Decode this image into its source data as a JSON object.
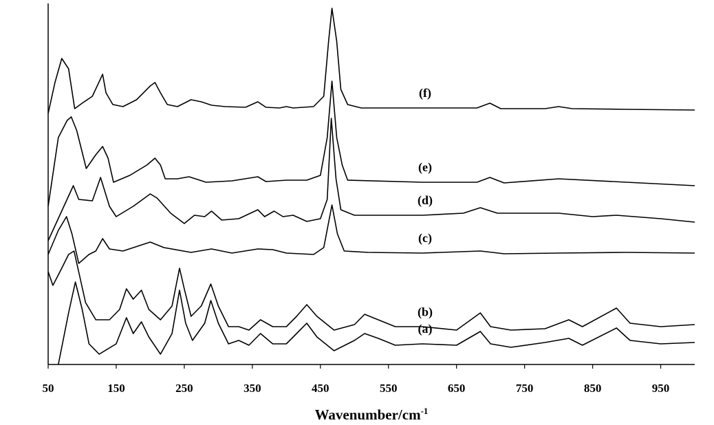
{
  "chart_data": {
    "type": "line",
    "x_label": "Wavenumber/cm",
    "x_label_sup": "-1",
    "xlim": [
      50,
      1000
    ],
    "xticks": [
      50,
      150,
      250,
      350,
      450,
      550,
      650,
      750,
      850,
      950
    ],
    "ylim": [
      0,
      525
    ],
    "series": [
      {
        "name": "(a)",
        "color": "#000000",
        "x": [
          65,
          80,
          90,
          100,
          110,
          125,
          150,
          165,
          175,
          187,
          198,
          215,
          232,
          243,
          252,
          262,
          280,
          289,
          300,
          315,
          330,
          345,
          362,
          380,
          400,
          415,
          430,
          445,
          470,
          500,
          515,
          535,
          560,
          600,
          650,
          685,
          700,
          730,
          780,
          815,
          835,
          885,
          905,
          950,
          1000
        ],
        "values": [
          0,
          75,
          120,
          80,
          30,
          15,
          30,
          68,
          45,
          62,
          40,
          15,
          45,
          108,
          60,
          35,
          60,
          93,
          60,
          30,
          35,
          28,
          45,
          30,
          30,
          45,
          60,
          40,
          20,
          35,
          45,
          38,
          28,
          30,
          28,
          48,
          30,
          25,
          32,
          38,
          28,
          53,
          35,
          30,
          32
        ]
      },
      {
        "name": "(b)",
        "color": "#000000",
        "x": [
          50,
          57,
          70,
          80,
          88,
          96,
          105,
          120,
          140,
          155,
          165,
          175,
          187,
          198,
          215,
          232,
          243,
          250,
          260,
          275,
          289,
          300,
          315,
          330,
          345,
          362,
          380,
          400,
          415,
          430,
          445,
          470,
          500,
          515,
          535,
          560,
          600,
          650,
          685,
          700,
          730,
          780,
          815,
          835,
          885,
          905,
          950,
          1000
        ],
        "values": [
          135,
          115,
          140,
          160,
          165,
          130,
          90,
          65,
          65,
          80,
          110,
          95,
          108,
          80,
          65,
          85,
          140,
          110,
          70,
          85,
          117,
          85,
          55,
          55,
          50,
          65,
          55,
          55,
          70,
          87,
          70,
          50,
          58,
          73,
          65,
          55,
          55,
          50,
          75,
          55,
          50,
          52,
          65,
          55,
          82,
          60,
          55,
          58
        ]
      },
      {
        "name": "(c)",
        "color": "#000000",
        "x": [
          50,
          65,
          77,
          85,
          95,
          110,
          120,
          130,
          140,
          160,
          200,
          220,
          260,
          290,
          320,
          358,
          380,
          400,
          440,
          455,
          467,
          475,
          485,
          520,
          600,
          685,
          720,
          800,
          900,
          1000
        ],
        "values": [
          160,
          195,
          215,
          190,
          147,
          160,
          165,
          183,
          168,
          165,
          178,
          170,
          163,
          168,
          162,
          168,
          167,
          162,
          160,
          170,
          232,
          190,
          165,
          163,
          162,
          165,
          161,
          162,
          163,
          162
        ]
      },
      {
        "name": "(d)",
        "color": "#000000",
        "x": [
          50,
          87,
          95,
          115,
          127,
          140,
          150,
          175,
          200,
          210,
          230,
          250,
          265,
          280,
          290,
          305,
          330,
          358,
          368,
          382,
          395,
          410,
          430,
          450,
          460,
          466,
          473,
          480,
          500,
          600,
          660,
          685,
          710,
          800,
          850,
          885,
          950,
          1000
        ],
        "values": [
          180,
          260,
          240,
          238,
          272,
          230,
          215,
          230,
          248,
          242,
          220,
          205,
          217,
          215,
          223,
          210,
          212,
          225,
          215,
          223,
          215,
          217,
          208,
          212,
          240,
          358,
          270,
          225,
          217,
          217,
          220,
          228,
          220,
          220,
          215,
          217,
          212,
          207
        ]
      },
      {
        "name": "(e)",
        "color": "#000000",
        "x": [
          50,
          65,
          78,
          84,
          92,
          106,
          120,
          130,
          138,
          146,
          170,
          195,
          207,
          215,
          222,
          240,
          257,
          282,
          320,
          358,
          370,
          400,
          430,
          450,
          460,
          467,
          474,
          482,
          490,
          600,
          680,
          699,
          720,
          800,
          900,
          1000
        ],
        "values": [
          230,
          330,
          355,
          360,
          340,
          285,
          305,
          317,
          300,
          265,
          275,
          290,
          300,
          290,
          270,
          270,
          273,
          265,
          267,
          273,
          266,
          268,
          268,
          275,
          330,
          412,
          330,
          290,
          268,
          265,
          265,
          272,
          264,
          270,
          265,
          260
        ]
      },
      {
        "name": "(f)",
        "color": "#000000",
        "x": [
          50,
          60,
          70,
          80,
          89,
          100,
          115,
          130,
          135,
          145,
          160,
          180,
          200,
          207,
          215,
          225,
          240,
          260,
          275,
          290,
          310,
          340,
          358,
          370,
          390,
          400,
          410,
          440,
          455,
          462,
          467,
          474,
          480,
          490,
          510,
          600,
          680,
          699,
          715,
          780,
          800,
          820,
          900,
          1000
        ],
        "values": [
          365,
          410,
          445,
          430,
          372,
          380,
          390,
          422,
          395,
          378,
          375,
          385,
          405,
          410,
          395,
          378,
          375,
          385,
          382,
          377,
          375,
          374,
          382,
          374,
          373,
          375,
          373,
          375,
          390,
          470,
          518,
          470,
          400,
          378,
          373,
          373,
          373,
          380,
          372,
          372,
          375,
          372,
          371,
          370
        ]
      }
    ]
  }
}
